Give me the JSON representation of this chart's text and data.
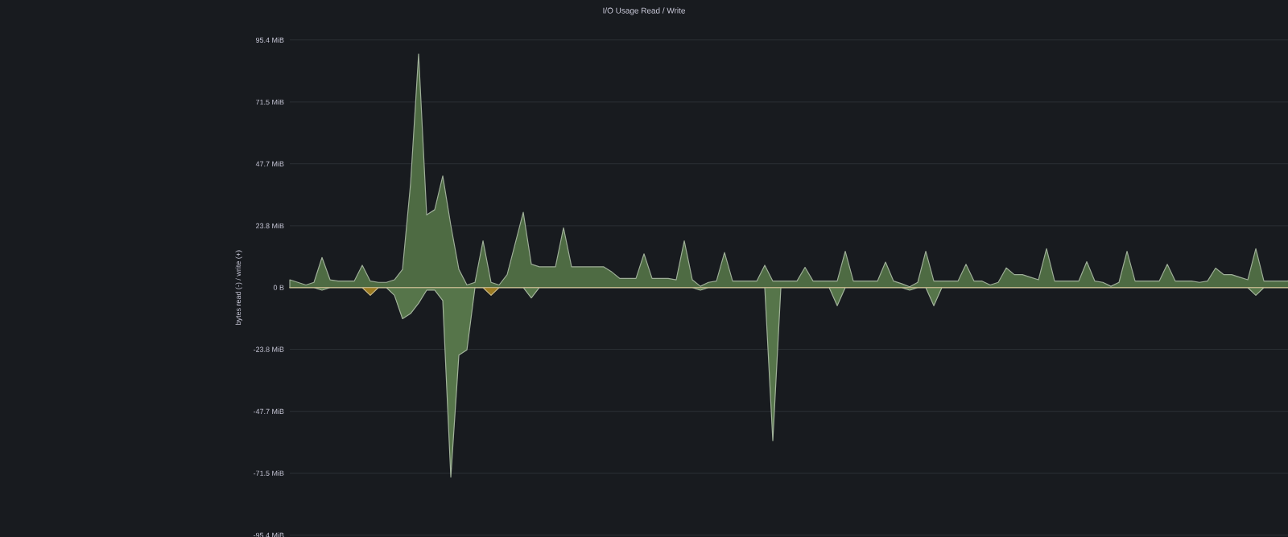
{
  "chart_data": {
    "type": "area",
    "title": "I/O Usage Read / Write",
    "ylabel": "bytes read (-) / write (+)",
    "categories": [
      null,
      null,
      null,
      null,
      null,
      null,
      null,
      null,
      null,
      null,
      null,
      null,
      null,
      null,
      null,
      null,
      null,
      null,
      null,
      null,
      null,
      null,
      null,
      null,
      null,
      null,
      null,
      null,
      null,
      null,
      null,
      null,
      null,
      null,
      null,
      null,
      null,
      null,
      null,
      null,
      null,
      null,
      null,
      null,
      null,
      null,
      null,
      null,
      null,
      null,
      null,
      null,
      null,
      null,
      null,
      null,
      null,
      null,
      null,
      null,
      null,
      null,
      null,
      null,
      null,
      null,
      null,
      null,
      null,
      null,
      null,
      null,
      null,
      null,
      null,
      null,
      null,
      null,
      null,
      null,
      null,
      null,
      null,
      null,
      null,
      null,
      null,
      null,
      null,
      null,
      null,
      null,
      null,
      null,
      null,
      null,
      null,
      null,
      null,
      null,
      null,
      null,
      null,
      null,
      null,
      null,
      null,
      null,
      null,
      null,
      null,
      null,
      null,
      null,
      null,
      null,
      null,
      null,
      null,
      null,
      null,
      null,
      null,
      null,
      null,
      null,
      null,
      null,
      null,
      null,
      null,
      null,
      null,
      null,
      null,
      null,
      null,
      null,
      null,
      null,
      null,
      null,
      null,
      null,
      null,
      null,
      null,
      null,
      null,
      null,
      null,
      null
    ],
    "series": [
      {
        "color": "#4e6b43",
        "values": [
          3,
          2,
          1,
          2,
          11.6,
          3,
          2.5,
          2.5,
          2.5,
          8.6,
          2.5,
          2,
          2,
          3,
          7,
          40,
          90,
          28,
          30,
          43,
          24,
          7,
          1,
          2,
          18,
          2,
          1,
          5,
          17,
          29,
          9,
          8,
          8,
          8,
          23,
          8,
          8,
          8,
          8,
          8,
          6,
          3.5,
          3.5,
          3.5,
          13,
          3.5,
          3.5,
          3.5,
          3,
          18,
          3,
          0.5,
          2,
          2.5,
          13.5,
          2.5,
          2.5,
          2.5,
          2.5,
          8.6,
          2.5,
          2.5,
          2.5,
          2.5,
          7.8,
          2.5,
          2.5,
          2.5,
          2.5,
          14,
          2.5,
          2.5,
          2.5,
          2.5,
          9.8,
          2.5,
          1.5,
          0.3,
          2,
          14,
          2.5,
          2.5,
          2.5,
          2.5,
          9,
          2.5,
          2.5,
          1,
          2,
          7.6,
          5,
          5,
          4,
          3,
          15,
          2.5,
          2.5,
          2.5,
          2.5,
          10,
          2.5,
          2,
          0.5,
          2,
          14,
          2.5,
          2.5,
          2.5,
          2.5,
          9,
          2.5,
          2.5,
          2.5,
          2,
          2.5,
          7.5,
          5,
          5,
          4,
          3,
          15,
          2.5,
          2.5,
          2.5,
          2.5,
          9.8,
          2.5,
          2,
          0.5,
          2,
          14,
          2.5,
          2.5,
          2.5,
          2.5,
          7.8,
          2.5,
          2.5,
          1,
          2,
          7.3,
          4,
          3,
          2.5,
          2.5,
          14,
          2.5,
          2.5,
          2.5,
          2.5,
          9.8,
          2.5
        ]
      },
      {
        "color": "#56754a",
        "values": [
          0,
          0,
          0,
          0,
          -1,
          0,
          0,
          0,
          0,
          0,
          0,
          0,
          0,
          -3,
          -12,
          -10,
          -6,
          -1,
          -1,
          -5,
          -73,
          -26,
          -24,
          0,
          0,
          0,
          0,
          0,
          0,
          0,
          -4,
          0,
          0,
          0,
          0,
          0,
          0,
          0,
          0,
          0,
          0,
          0,
          0,
          0,
          0,
          0,
          0,
          0,
          0,
          0,
          0,
          -1,
          0,
          0,
          0,
          0,
          0,
          0,
          0,
          0,
          -59,
          0,
          0,
          0,
          0,
          0,
          0,
          0,
          -7,
          0,
          0,
          0,
          0,
          0,
          0,
          0,
          0,
          -1,
          0,
          0,
          -7,
          0,
          0,
          0,
          0,
          0,
          0,
          0,
          0,
          0,
          0,
          0,
          0,
          0,
          0,
          0,
          0,
          0,
          0,
          0,
          0,
          0,
          0,
          0,
          0,
          0,
          0,
          0,
          0,
          0,
          0,
          0,
          0,
          0,
          0,
          0,
          0,
          0,
          0,
          0,
          -3,
          0,
          0,
          0,
          0,
          0,
          0,
          0,
          0,
          0,
          0,
          0,
          0,
          0,
          0,
          0,
          0,
          0,
          0,
          0,
          -1,
          0,
          0,
          0,
          0,
          0,
          0,
          0,
          0,
          0,
          0,
          0
        ]
      },
      {
        "color": "#9a7a22",
        "values": [
          0,
          0,
          0,
          0,
          0,
          0,
          0,
          0,
          0,
          0,
          -3,
          0,
          0,
          0,
          0,
          0,
          0,
          0,
          0,
          0,
          0,
          0,
          0,
          0,
          0,
          -3,
          0,
          0,
          0,
          0,
          0,
          0,
          0,
          0,
          0,
          0,
          0,
          0,
          0,
          0,
          0,
          0,
          0,
          0,
          0,
          0,
          0,
          0,
          0,
          0,
          0,
          0,
          0,
          0,
          0,
          0,
          0,
          0,
          0,
          0,
          0,
          0,
          0,
          0,
          0,
          0,
          0,
          0,
          0,
          0,
          0,
          0,
          0,
          0,
          0,
          0,
          0,
          0,
          0,
          0,
          0,
          0,
          0,
          0,
          0,
          0,
          0,
          0,
          0,
          0,
          0,
          0,
          0,
          0,
          0,
          0,
          0,
          0,
          0,
          0,
          0,
          0,
          0,
          0,
          0,
          0,
          0,
          0,
          0,
          0,
          0,
          0,
          0,
          0,
          0,
          0,
          0,
          0,
          0,
          0,
          0,
          0,
          0,
          0,
          0,
          0,
          0,
          0,
          0,
          0,
          0,
          0,
          0,
          0,
          0,
          0,
          0,
          0,
          0,
          -5,
          0,
          0,
          0,
          0,
          0,
          0,
          0,
          0,
          0,
          0,
          0,
          0
        ]
      }
    ],
    "ylim": [
      -95.4,
      95.4
    ],
    "yticks": [
      {
        "value": -95.4,
        "label": "-95.4 MiB"
      },
      {
        "value": -71.5,
        "label": "-71.5 MiB"
      },
      {
        "value": -47.7,
        "label": "-47.7 MiB"
      },
      {
        "value": -23.8,
        "label": "-23.8 MiB"
      },
      {
        "value": 0,
        "label": "0 B"
      },
      {
        "value": 23.8,
        "label": "23.8 MiB"
      },
      {
        "value": 47.7,
        "label": "47.7 MiB"
      },
      {
        "value": 71.5,
        "label": "71.5 MiB"
      },
      {
        "value": 95.4,
        "label": "95.4 MiB"
      }
    ],
    "grid": "y",
    "tick_labels": "y",
    "marker": "none"
  }
}
